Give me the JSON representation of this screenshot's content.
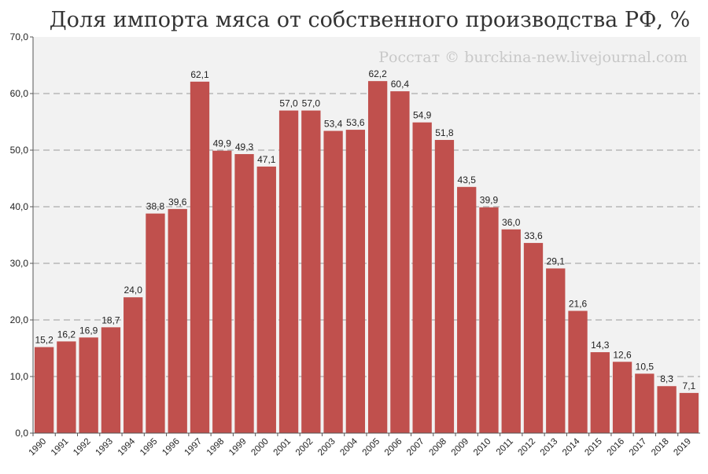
{
  "chart_data": {
    "type": "bar",
    "title": "Доля импорта мяса от собственного производства РФ, %",
    "source": "Росстат © burckina-new.livejournal.com",
    "xlabel": "",
    "ylabel": "",
    "ylim": [
      0,
      70
    ],
    "yticks": [
      "0,0",
      "10,0",
      "20,0",
      "30,0",
      "40,0",
      "50,0",
      "60,0",
      "70,0"
    ],
    "grid": true,
    "categories": [
      "1990",
      "1991",
      "1992",
      "1993",
      "1994",
      "1995",
      "1996",
      "1997",
      "1998",
      "1999",
      "2000",
      "2001",
      "2002",
      "2003",
      "2004",
      "2005",
      "2006",
      "2007",
      "2008",
      "2009",
      "2010",
      "2011",
      "2012",
      "2013",
      "2014",
      "2015",
      "2016",
      "2017",
      "2018",
      "2019"
    ],
    "values": [
      15.2,
      16.2,
      16.9,
      18.7,
      24.0,
      38.8,
      39.6,
      62.1,
      49.9,
      49.3,
      47.1,
      57.0,
      57.0,
      53.4,
      53.6,
      62.2,
      60.4,
      54.9,
      51.8,
      43.5,
      39.9,
      36.0,
      33.6,
      29.1,
      21.6,
      14.3,
      12.6,
      10.5,
      8.3,
      7.1
    ],
    "labels": [
      "15,2",
      "16,2",
      "16,9",
      "18,7",
      "24,0",
      "38,8",
      "39,6",
      "62,1",
      "49,9",
      "49,3",
      "47,1",
      "57,0",
      "57,0",
      "53,4",
      "53,6",
      "62,2",
      "60,4",
      "54,9",
      "51,8",
      "43,5",
      "39,9",
      "36,0",
      "33,6",
      "29,1",
      "21,6",
      "14,3",
      "12,6",
      "10,5",
      "8,3",
      "7,1"
    ],
    "colors": {
      "bar": "#c0504d",
      "plot_bg": "#f2f2f2",
      "grid": "#9a9a9a"
    }
  }
}
